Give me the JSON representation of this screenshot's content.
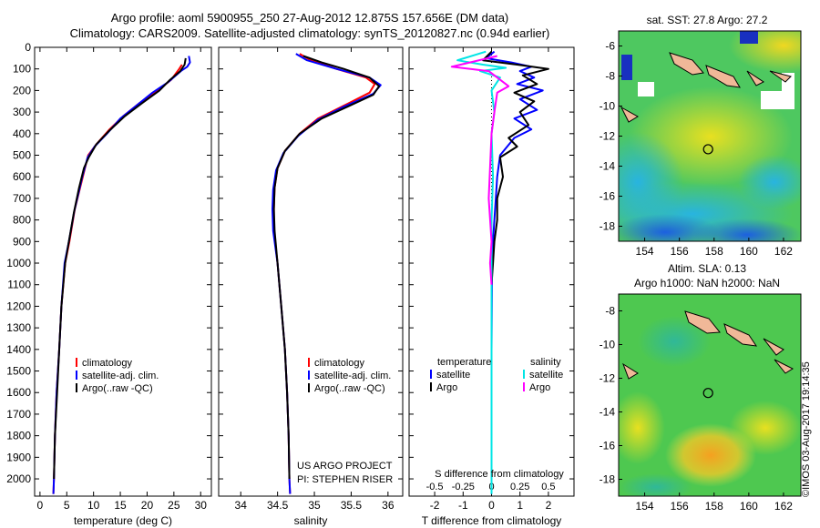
{
  "header": {
    "title_line1": "Argo profile: aoml 5900955_250 27-Aug-2012 12.875S 157.656E (DM data)",
    "title_line2": "Climatology: CARS2009. Satellite-adjusted climatology: synTS_20120827.nc (0.94d earlier)"
  },
  "colors": {
    "climatology": "#ff0000",
    "satellite": "#0000ff",
    "argo": "#000000",
    "salinity_satellite": "#00e5e5",
    "salinity_argo": "#ff00ff"
  },
  "chart_data": [
    {
      "type": "line",
      "id": "temperature",
      "xlabel": "temperature (deg C)",
      "ylabel": "",
      "xlim": [
        -1,
        32
      ],
      "ylim": [
        2080,
        0
      ],
      "xticks": [
        0,
        5,
        10,
        15,
        20,
        25,
        30
      ],
      "yticks": [
        0,
        100,
        200,
        300,
        400,
        500,
        600,
        700,
        800,
        900,
        1000,
        1100,
        1200,
        1300,
        1400,
        1500,
        1600,
        1700,
        1800,
        1900,
        2000
      ],
      "legend": [
        "climatology",
        "satellite-adj. clim.",
        "Argo(..raw -QC)"
      ],
      "series": [
        {
          "name": "climatology",
          "color": "#ff0000",
          "points": [
            [
              26.5,
              80
            ],
            [
              26,
              100
            ],
            [
              24.5,
              150
            ],
            [
              22,
              200
            ],
            [
              18.5,
              260
            ],
            [
              15.5,
              320
            ],
            [
              13,
              380
            ],
            [
              10.5,
              450
            ],
            [
              9,
              500
            ],
            [
              8,
              600
            ],
            [
              6.5,
              750
            ],
            [
              5.5,
              900
            ],
            [
              4.7,
              1000
            ],
            [
              4,
              1200
            ],
            [
              3.6,
              1400
            ],
            [
              3.1,
              1600
            ],
            [
              2.8,
              1800
            ],
            [
              2.6,
              2000
            ],
            [
              2.5,
              2070
            ]
          ]
        },
        {
          "name": "satellite-adj. clim.",
          "color": "#0000ff",
          "points": [
            [
              27.8,
              40
            ],
            [
              28,
              70
            ],
            [
              27.5,
              90
            ],
            [
              26.3,
              110
            ],
            [
              24,
              160
            ],
            [
              21,
              210
            ],
            [
              18,
              270
            ],
            [
              15,
              330
            ],
            [
              12.5,
              400
            ],
            [
              10.2,
              460
            ],
            [
              8.9,
              510
            ],
            [
              7.9,
              600
            ],
            [
              6.4,
              760
            ],
            [
              5.4,
              900
            ],
            [
              4.6,
              1000
            ],
            [
              4,
              1200
            ],
            [
              3.6,
              1400
            ],
            [
              3.1,
              1600
            ],
            [
              2.8,
              1800
            ],
            [
              2.6,
              2000
            ],
            [
              2.5,
              2070
            ]
          ]
        },
        {
          "name": "Argo(..raw -QC)",
          "color": "#000000",
          "points": [
            [
              27.2,
              50
            ],
            [
              27,
              80
            ],
            [
              26.2,
              110
            ],
            [
              24.3,
              150
            ],
            [
              22.3,
              200
            ],
            [
              19,
              260
            ],
            [
              15.8,
              320
            ],
            [
              12.8,
              390
            ],
            [
              10.5,
              450
            ],
            [
              9.1,
              510
            ],
            [
              8.2,
              560
            ],
            [
              7.3,
              650
            ],
            [
              6.3,
              770
            ],
            [
              5.4,
              900
            ],
            [
              4.7,
              1000
            ],
            [
              4,
              1200
            ],
            [
              3.6,
              1400
            ],
            [
              3.2,
              1600
            ],
            [
              2.8,
              1800
            ],
            [
              2.6,
              2000
            ]
          ]
        }
      ]
    },
    {
      "type": "line",
      "id": "salinity",
      "xlabel": "salinity",
      "ylabel": "",
      "xlim": [
        33.7,
        36.2
      ],
      "ylim": [
        2080,
        0
      ],
      "xticks": [
        34,
        34.5,
        35,
        35.5,
        36
      ],
      "legend": [
        "climatology",
        "satellite-adj. clim.",
        "Argo(..raw -QC)"
      ],
      "annotations": [
        "US ARGO PROJECT",
        "PI: STEPHEN RISER"
      ],
      "series": [
        {
          "name": "climatology",
          "color": "#ff0000",
          "points": [
            [
              34.8,
              30
            ],
            [
              34.95,
              60
            ],
            [
              35.3,
              100
            ],
            [
              35.7,
              140
            ],
            [
              35.82,
              170
            ],
            [
              35.75,
              210
            ],
            [
              35.4,
              270
            ],
            [
              35.05,
              330
            ],
            [
              34.8,
              400
            ],
            [
              34.6,
              480
            ],
            [
              34.5,
              560
            ],
            [
              34.46,
              650
            ],
            [
              34.45,
              750
            ],
            [
              34.45,
              850
            ],
            [
              34.5,
              1000
            ],
            [
              34.55,
              1200
            ],
            [
              34.6,
              1400
            ],
            [
              34.63,
              1600
            ],
            [
              34.65,
              1800
            ],
            [
              34.66,
              2000
            ],
            [
              34.67,
              2070
            ]
          ]
        },
        {
          "name": "satellite-adj. clim.",
          "color": "#0000ff",
          "points": [
            [
              34.75,
              30
            ],
            [
              34.9,
              60
            ],
            [
              35.3,
              100
            ],
            [
              35.75,
              140
            ],
            [
              35.9,
              175
            ],
            [
              35.8,
              215
            ],
            [
              35.4,
              275
            ],
            [
              35.05,
              335
            ],
            [
              34.78,
              410
            ],
            [
              34.58,
              490
            ],
            [
              34.48,
              570
            ],
            [
              34.44,
              660
            ],
            [
              34.43,
              750
            ],
            [
              34.44,
              850
            ],
            [
              34.5,
              1000
            ],
            [
              34.55,
              1200
            ],
            [
              34.6,
              1400
            ],
            [
              34.63,
              1600
            ],
            [
              34.65,
              1800
            ],
            [
              34.66,
              2000
            ],
            [
              34.67,
              2070
            ]
          ]
        },
        {
          "name": "Argo(..raw -QC)",
          "color": "#000000",
          "points": [
            [
              34.85,
              40
            ],
            [
              35.1,
              70
            ],
            [
              35.4,
              100
            ],
            [
              35.75,
              140
            ],
            [
              35.88,
              180
            ],
            [
              35.8,
              220
            ],
            [
              35.45,
              275
            ],
            [
              35.1,
              330
            ],
            [
              34.8,
              400
            ],
            [
              34.6,
              480
            ],
            [
              34.5,
              560
            ],
            [
              34.46,
              650
            ],
            [
              34.45,
              750
            ],
            [
              34.46,
              850
            ],
            [
              34.5,
              1000
            ],
            [
              34.55,
              1200
            ],
            [
              34.6,
              1400
            ],
            [
              34.63,
              1600
            ],
            [
              34.65,
              1800
            ],
            [
              34.66,
              2000
            ]
          ]
        }
      ]
    },
    {
      "type": "line",
      "id": "difference",
      "xlabel": "T difference from climatology",
      "xlabel_top": "S difference from climatology",
      "xlim": [
        -2.9,
        2.9
      ],
      "ylim": [
        2080,
        0
      ],
      "xticks_T": [
        -2,
        -1,
        0,
        1,
        2
      ],
      "xticks_S": [
        "-0.5",
        "-0.25",
        "0",
        "0.25",
        "0.5"
      ],
      "xticks_S_pos": [
        -2,
        -1,
        0,
        1,
        2
      ],
      "legend_T_title": "temperature",
      "legend_S_title": "salinity",
      "legend_T": [
        "satellite",
        "Argo"
      ],
      "legend_S": [
        "satellite",
        "Argo"
      ],
      "series": [
        {
          "name": "T satellite",
          "color": "#0000ff",
          "points": [
            [
              0.1,
              20
            ],
            [
              -0.2,
              50
            ],
            [
              0.7,
              70
            ],
            [
              1.4,
              90
            ],
            [
              1.0,
              110
            ],
            [
              1.5,
              140
            ],
            [
              0.9,
              170
            ],
            [
              1.8,
              200
            ],
            [
              1.0,
              240
            ],
            [
              1.6,
              290
            ],
            [
              0.8,
              330
            ],
            [
              1.4,
              380
            ],
            [
              0.8,
              420
            ],
            [
              0.3,
              500
            ],
            [
              0.2,
              600
            ],
            [
              0.15,
              700
            ],
            [
              0.1,
              800
            ],
            [
              0.05,
              900
            ],
            [
              0.02,
              1000
            ],
            [
              0.01,
              1200
            ],
            [
              0,
              1400
            ],
            [
              0,
              1700
            ],
            [
              0,
              2000
            ],
            [
              0,
              2070
            ]
          ]
        },
        {
          "name": "T Argo",
          "color": "#000000",
          "points": [
            [
              0,
              20
            ],
            [
              -0.3,
              60
            ],
            [
              0.9,
              80
            ],
            [
              2.0,
              100
            ],
            [
              1.1,
              130
            ],
            [
              1.6,
              170
            ],
            [
              0.8,
              210
            ],
            [
              1.5,
              250
            ],
            [
              1.0,
              300
            ],
            [
              1.3,
              360
            ],
            [
              0.6,
              420
            ],
            [
              0.9,
              460
            ],
            [
              0.3,
              510
            ],
            [
              0.4,
              600
            ],
            [
              0.2,
              700
            ],
            [
              0.2,
              800
            ],
            [
              0.1,
              900
            ],
            [
              0.05,
              1000
            ],
            [
              0,
              1100
            ]
          ]
        },
        {
          "name": "S satellite",
          "color": "#00e5e5",
          "points": [
            [
              -0.2,
              20
            ],
            [
              -1.2,
              60
            ],
            [
              -0.3,
              80
            ],
            [
              0.5,
              95
            ],
            [
              -0.4,
              110
            ],
            [
              0.3,
              140
            ],
            [
              0,
              200
            ],
            [
              0.1,
              300
            ],
            [
              0,
              400
            ],
            [
              0.05,
              600
            ],
            [
              0,
              800
            ],
            [
              0,
              1000
            ],
            [
              0,
              1500
            ],
            [
              0,
              2070
            ]
          ]
        },
        {
          "name": "S Argo",
          "color": "#ff00ff",
          "points": [
            [
              0.2,
              40
            ],
            [
              -1.4,
              90
            ],
            [
              -0.1,
              110
            ],
            [
              0.6,
              180
            ],
            [
              0.2,
              210
            ],
            [
              0.1,
              300
            ],
            [
              0,
              400
            ],
            [
              -0.1,
              700
            ],
            [
              0,
              900
            ],
            [
              -0.05,
              1000
            ],
            [
              0,
              1100
            ]
          ]
        }
      ]
    },
    {
      "type": "heatmap",
      "id": "sst_map",
      "title": "sat. SST: 27.8 Argo: 27.2",
      "xlim": [
        152.5,
        163
      ],
      "ylim": [
        -19,
        -5
      ],
      "xticks": [
        154,
        156,
        158,
        160,
        162
      ],
      "yticks": [
        -6,
        -8,
        -10,
        -12,
        -14,
        -16,
        -18
      ],
      "float_lon": 157.656,
      "float_lat": -12.875
    },
    {
      "type": "heatmap",
      "id": "sla_map",
      "title": "Altim. SLA: 0.13",
      "subtitle": "Argo h1000: NaN h2000: NaN",
      "xlim": [
        152.5,
        163
      ],
      "ylim": [
        -19,
        -7
      ],
      "xticks": [
        154,
        156,
        158,
        160,
        162
      ],
      "yticks": [
        -8,
        -10,
        -12,
        -14,
        -16,
        -18
      ],
      "float_lon": 157.656,
      "float_lat": -12.875
    }
  ],
  "footer": {
    "stamp": "©IMOS 03-Aug-2017 19:14:35"
  }
}
